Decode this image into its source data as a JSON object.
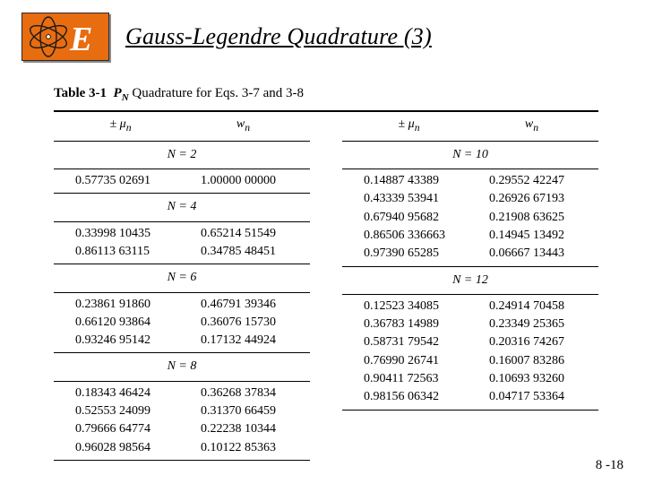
{
  "title": "Gauss-Legendre Quadrature (3)",
  "page_number": "8 -18",
  "logo": {
    "bg": "#e86c10",
    "stroke": "#1a1a1a",
    "letter_fill": "#ffffff"
  },
  "caption": {
    "label": "Table 3-1",
    "symbol_html": "P",
    "symbol_sub": "N",
    "rest": " Quadrature for Eqs. 3-7 and 3-8"
  },
  "headers": {
    "mu": "± μ",
    "mu_sub": "n",
    "w": "w",
    "w_sub": "n"
  },
  "left": [
    {
      "N": "N = 2",
      "rows": [
        [
          "0.57735 02691",
          "1.00000 00000"
        ]
      ]
    },
    {
      "N": "N = 4",
      "rows": [
        [
          "0.33998 10435",
          "0.65214 51549"
        ],
        [
          "0.86113 63115",
          "0.34785 48451"
        ]
      ]
    },
    {
      "N": "N = 6",
      "rows": [
        [
          "0.23861 91860",
          "0.46791 39346"
        ],
        [
          "0.66120 93864",
          "0.36076 15730"
        ],
        [
          "0.93246 95142",
          "0.17132 44924"
        ]
      ]
    },
    {
      "N": "N = 8",
      "rows": [
        [
          "0.18343 46424",
          "0.36268 37834"
        ],
        [
          "0.52553 24099",
          "0.31370 66459"
        ],
        [
          "0.79666 64774",
          "0.22238 10344"
        ],
        [
          "0.96028 98564",
          "0.10122 85363"
        ]
      ]
    }
  ],
  "right": [
    {
      "N": "N = 10",
      "rows": [
        [
          "0.14887 43389",
          "0.29552 42247"
        ],
        [
          "0.43339 53941",
          "0.26926 67193"
        ],
        [
          "0.67940 95682",
          "0.21908 63625"
        ],
        [
          "0.86506 336663",
          "0.14945 13492"
        ],
        [
          "0.97390 65285",
          "0.06667 13443"
        ]
      ]
    },
    {
      "N": "N = 12",
      "rows": [
        [
          "0.12523 34085",
          "0.24914 70458"
        ],
        [
          "0.36783 14989",
          "0.23349 25365"
        ],
        [
          "0.58731 79542",
          "0.20316 74267"
        ],
        [
          "0.76990 26741",
          "0.16007 83286"
        ],
        [
          "0.90411 72563",
          "0.10693 93260"
        ],
        [
          "0.98156 06342",
          "0.04717 53364"
        ]
      ]
    }
  ]
}
